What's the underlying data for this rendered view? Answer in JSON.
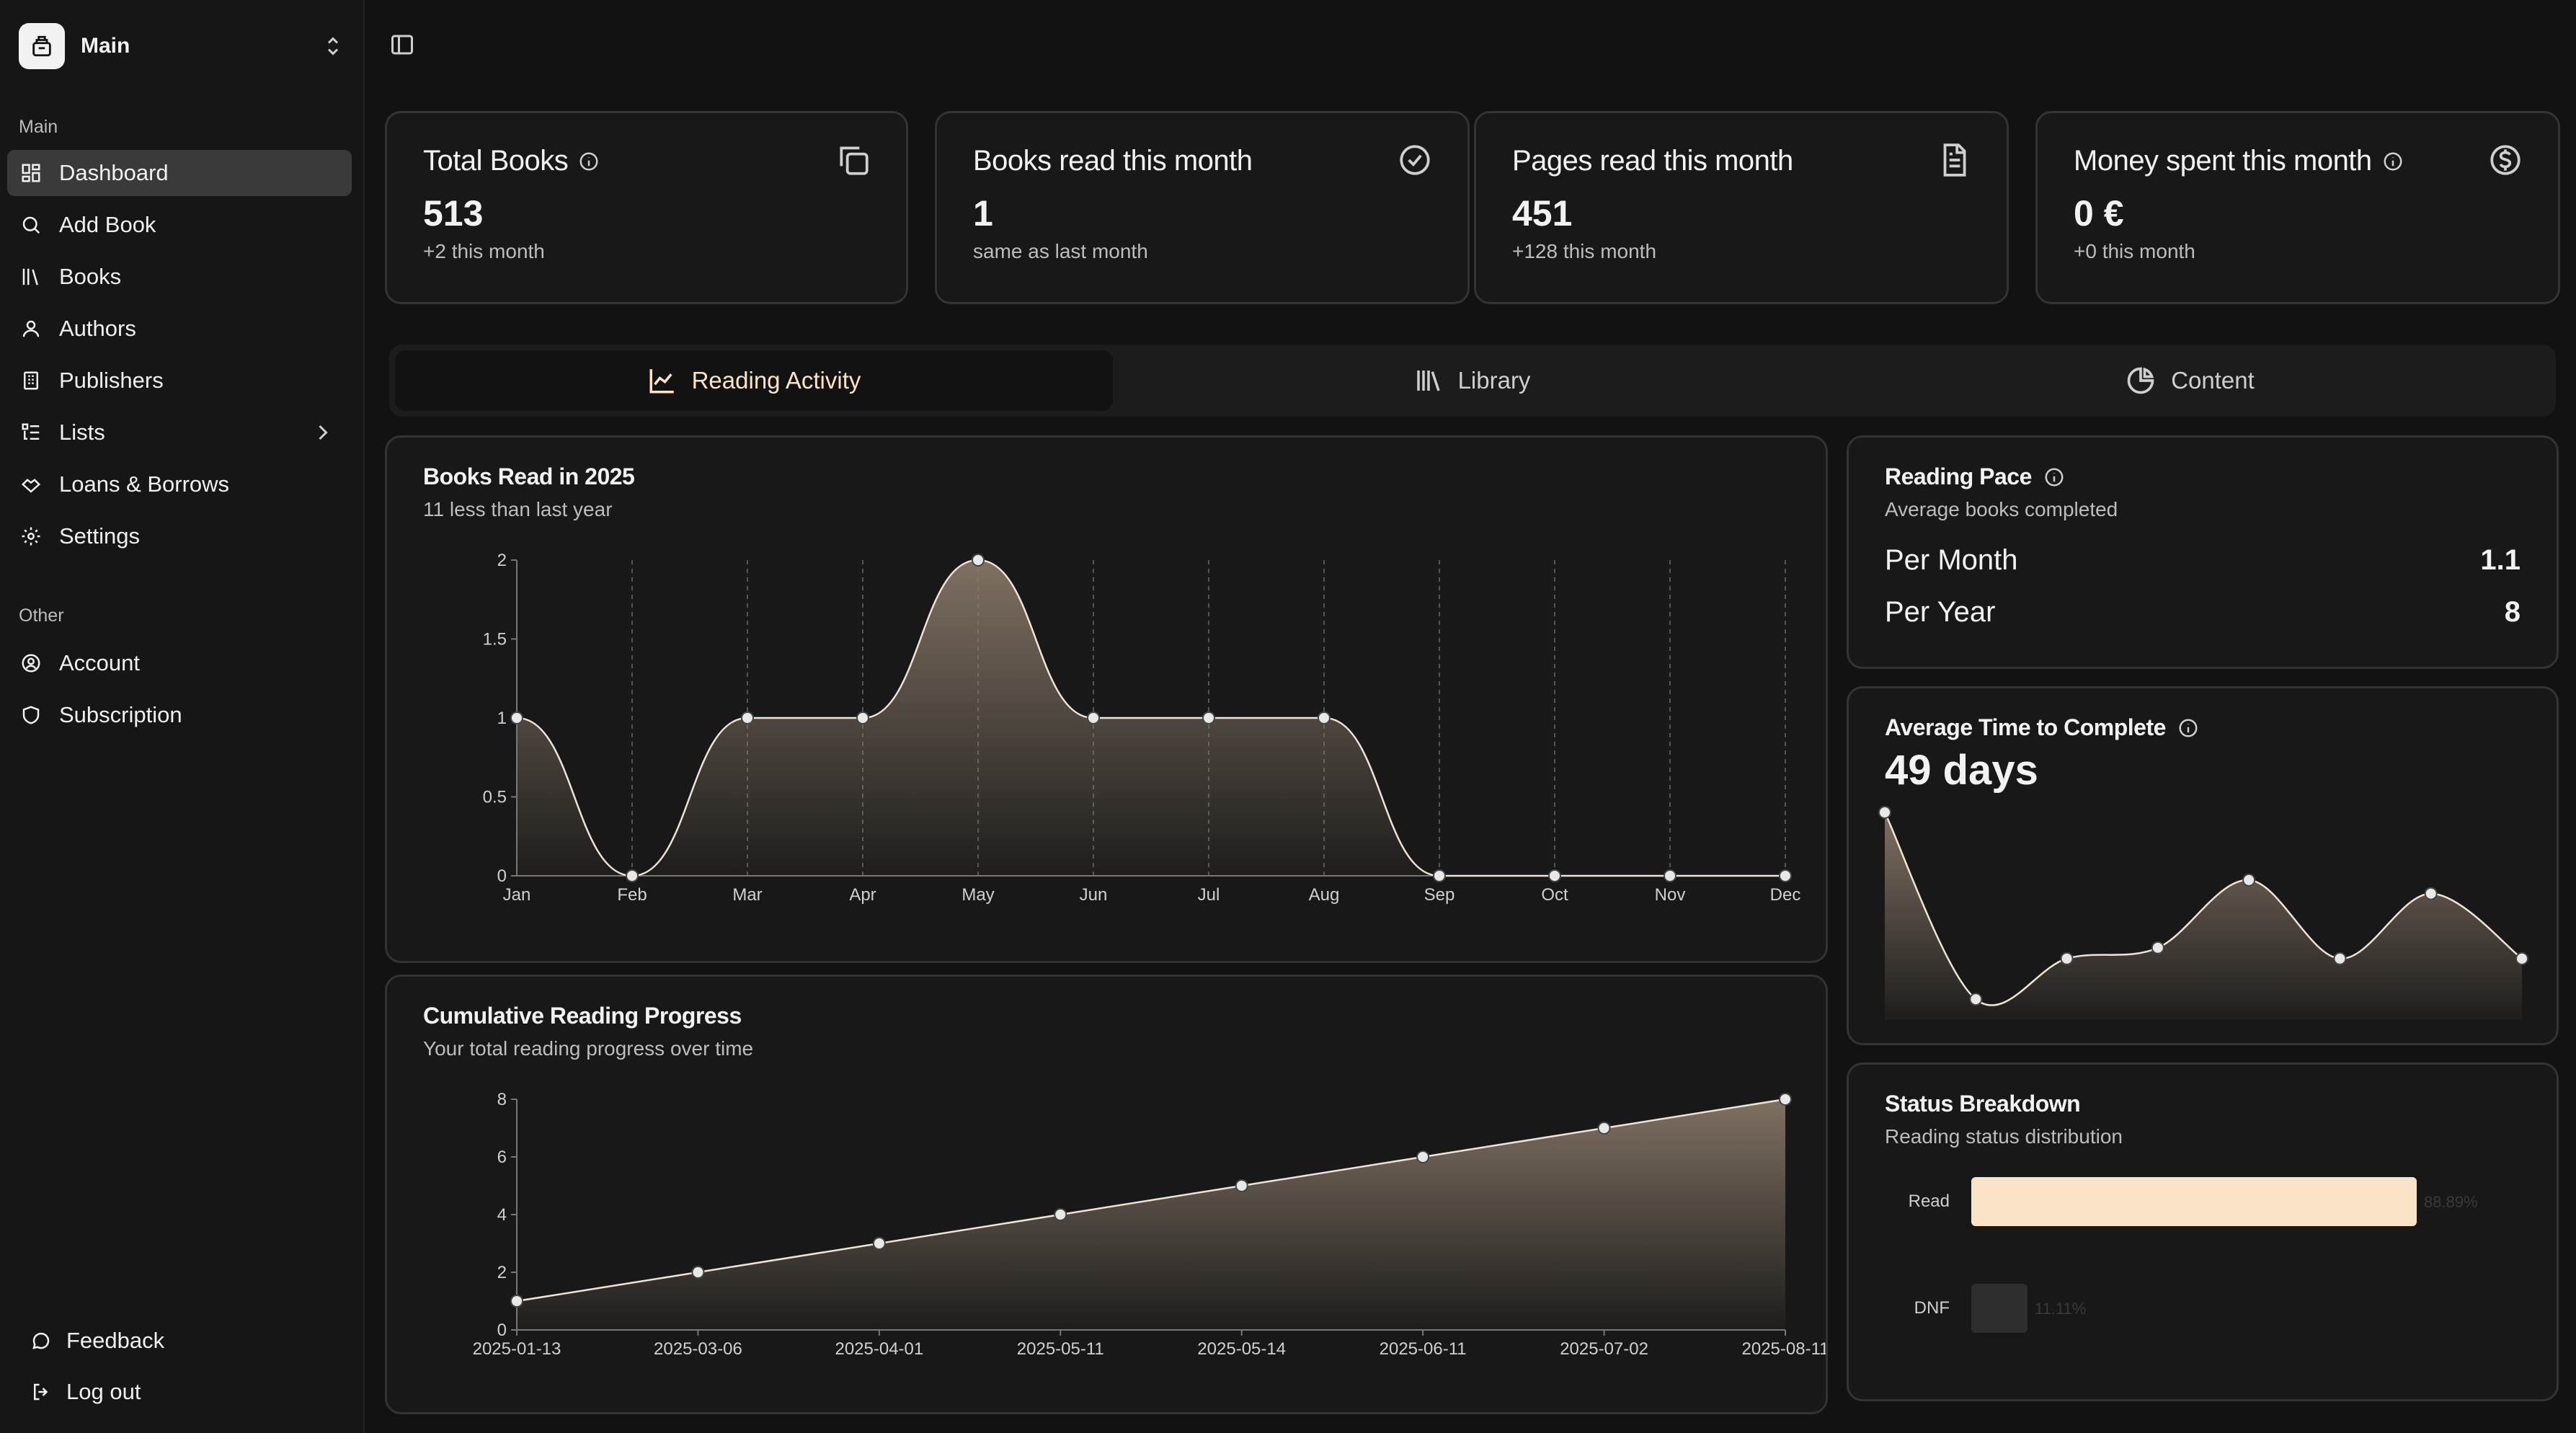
{
  "sidebar": {
    "workspace": "Main",
    "section_main": "Main",
    "section_other": "Other",
    "items": [
      {
        "label": "Dashboard",
        "icon": "dashboard-icon"
      },
      {
        "label": "Add Book",
        "icon": "search-icon"
      },
      {
        "label": "Books",
        "icon": "library-icon"
      },
      {
        "label": "Authors",
        "icon": "user-icon"
      },
      {
        "label": "Publishers",
        "icon": "building-icon"
      },
      {
        "label": "Lists",
        "icon": "list-icon"
      },
      {
        "label": "Loans & Borrows",
        "icon": "handshake-icon"
      },
      {
        "label": "Settings",
        "icon": "gear-icon"
      }
    ],
    "other_items": [
      {
        "label": "Account",
        "icon": "user-circle-icon"
      },
      {
        "label": "Subscription",
        "icon": "shield-icon"
      }
    ],
    "feedback": "Feedback",
    "logout": "Log out"
  },
  "stats": [
    {
      "title": "Total Books",
      "value": "513",
      "sub": "+2 this month"
    },
    {
      "title": "Books read this month",
      "value": "1",
      "sub": "same as last month"
    },
    {
      "title": "Pages read this month",
      "value": "451",
      "sub": "+128 this month"
    },
    {
      "title": "Money spent this month",
      "value": "0 €",
      "sub": "+0 this month"
    }
  ],
  "tabs": [
    "Reading Activity",
    "Library",
    "Content"
  ],
  "books_read": {
    "title": "Books Read in 2025",
    "subtitle": "11 less than last year"
  },
  "cumulative": {
    "title": "Cumulative Reading Progress",
    "subtitle": "Your total reading progress over time"
  },
  "pace": {
    "title": "Reading Pace",
    "subtitle": "Average books completed",
    "per_month_label": "Per Month",
    "per_month_value": "1.1",
    "per_year_label": "Per Year",
    "per_year_value": "8"
  },
  "avg_time": {
    "title": "Average Time to Complete",
    "value": "49 days"
  },
  "status": {
    "title": "Status Breakdown",
    "subtitle": "Reading status distribution",
    "read_label": "Read",
    "read_pct": "88.89%",
    "dnf_label": "DNF",
    "dnf_pct": "11.11%"
  },
  "colors": {
    "accent": "#fbe3c7",
    "background": "#121212",
    "card": "#181818"
  },
  "chart_data": [
    {
      "type": "area",
      "title": "Books Read in 2025",
      "categories": [
        "Jan",
        "Feb",
        "Mar",
        "Apr",
        "May",
        "Jun",
        "Jul",
        "Aug",
        "Sep",
        "Oct",
        "Nov",
        "Dec"
      ],
      "values": [
        1,
        0,
        1,
        1,
        2,
        1,
        1,
        1,
        0,
        0,
        0,
        0
      ],
      "ylim": [
        0,
        2
      ],
      "yticks": [
        "0",
        "0.5",
        "1",
        "1.5",
        "2"
      ],
      "grid": "vertical dashed"
    },
    {
      "type": "area",
      "title": "Cumulative Reading Progress",
      "categories": [
        "2025-01-13",
        "2025-03-06",
        "2025-04-01",
        "2025-05-11",
        "2025-05-14",
        "2025-06-11",
        "2025-07-02",
        "2025-08-11"
      ],
      "values": [
        1,
        2,
        3,
        4,
        5,
        6,
        7,
        8
      ],
      "ylim": [
        0,
        8
      ],
      "yticks": [
        "0",
        "2",
        "4",
        "6",
        "8"
      ]
    },
    {
      "type": "area",
      "title": "Average Time to Complete",
      "values": [
        148,
        10,
        40,
        48,
        98,
        40,
        88,
        40
      ]
    },
    {
      "type": "bar",
      "title": "Status Breakdown",
      "categories": [
        "Read",
        "DNF"
      ],
      "values": [
        88.89,
        11.11
      ]
    }
  ]
}
